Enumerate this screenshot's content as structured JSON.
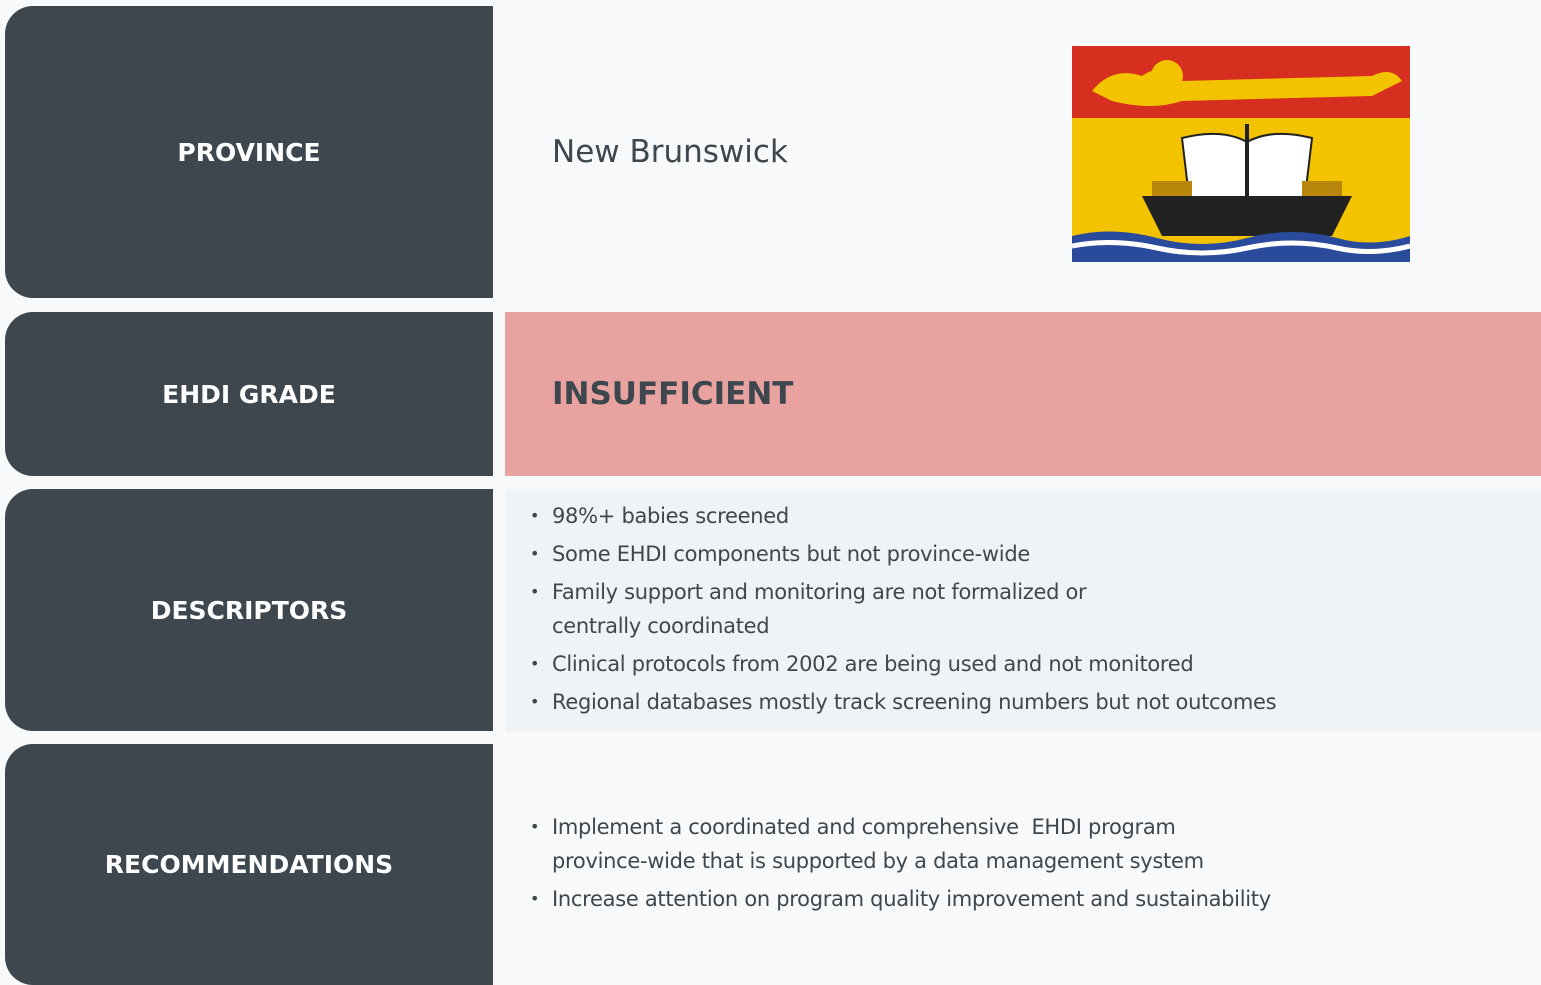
{
  "rows": [
    {
      "label": "PROVINCE",
      "value": "New Brunswick"
    },
    {
      "label": "EHDI GRADE",
      "value": "INSUFFICIENT"
    },
    {
      "label": "DESCRIPTORS",
      "items": [
        "98%+ babies screened",
        "Some EHDI components but not province-wide",
        "Family support and monitoring are not formalized or centrally coordinated",
        "Clinical protocols from 2002 are being used and not monitored",
        "Regional databases mostly track screening numbers but not outcomes"
      ]
    },
    {
      "label": "RECOMMENDATIONS",
      "items": [
        "Implement a coordinated and comprehensive  EHDI program province-wide that is supported by a data management system",
        "Increase attention on program quality improvement and sustainability"
      ]
    }
  ]
}
